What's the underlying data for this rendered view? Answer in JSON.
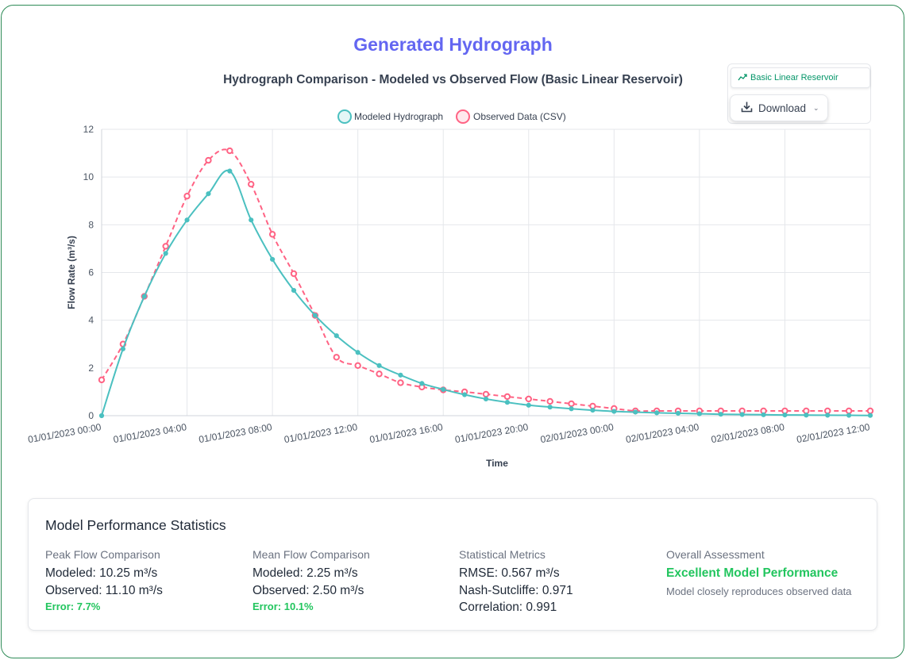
{
  "page": {
    "title": "Generated Hydrograph"
  },
  "toolbar": {
    "model_label": "Basic Linear Reservoir",
    "model_icon": "chart-line-icon",
    "download_label": "Download",
    "download_icon": "download-icon",
    "download_chevron": "chevron-down-icon"
  },
  "chart_data": {
    "type": "line",
    "title": "Hydrograph Comparison - Modeled vs Observed Flow (Basic Linear Reservoir)",
    "xlabel": "Time",
    "ylabel": "Flow Rate (m³/s)",
    "ylim": [
      0,
      12
    ],
    "yticks": [
      0,
      2,
      4,
      6,
      8,
      10,
      12
    ],
    "xticks": [
      "01/01/2023 00:00",
      "01/01/2023 04:00",
      "01/01/2023 08:00",
      "01/01/2023 12:00",
      "01/01/2023 16:00",
      "01/01/2023 20:00",
      "02/01/2023 00:00",
      "02/01/2023 04:00",
      "02/01/2023 08:00",
      "02/01/2023 12:00"
    ],
    "x_hours": [
      0,
      1,
      2,
      3,
      4,
      5,
      6,
      7,
      8,
      9,
      10,
      11,
      12,
      13,
      14,
      15,
      16,
      17,
      18,
      19,
      20,
      21,
      22,
      23,
      24,
      25,
      26,
      27,
      28,
      29,
      30,
      31,
      32,
      33,
      34,
      35,
      36
    ],
    "grid": true,
    "legend_position": "top",
    "series": [
      {
        "name": "Modeled Hydrograph",
        "color": "#4bc0c0",
        "style": "solid",
        "values": [
          0,
          2.8,
          5.0,
          6.8,
          8.2,
          9.3,
          10.25,
          8.2,
          6.55,
          5.25,
          4.2,
          3.35,
          2.65,
          2.1,
          1.7,
          1.35,
          1.1,
          0.88,
          0.7,
          0.56,
          0.44,
          0.36,
          0.29,
          0.23,
          0.18,
          0.15,
          0.12,
          0.1,
          0.08,
          0.06,
          0.05,
          0.04,
          0.03,
          0.025,
          0.02,
          0.015,
          0.01
        ]
      },
      {
        "name": "Observed Data (CSV)",
        "color": "#ff6384",
        "style": "dashed",
        "values": [
          1.5,
          3.0,
          5.0,
          7.1,
          9.2,
          10.7,
          11.1,
          9.7,
          7.6,
          5.95,
          4.2,
          2.45,
          2.1,
          1.75,
          1.38,
          1.2,
          1.08,
          1.0,
          0.9,
          0.8,
          0.7,
          0.6,
          0.5,
          0.4,
          0.3,
          0.2,
          0.2,
          0.2,
          0.2,
          0.2,
          0.2,
          0.2,
          0.2,
          0.2,
          0.2,
          0.2,
          0.2
        ]
      }
    ]
  },
  "stats": {
    "title": "Model Performance Statistics",
    "peak": {
      "label": "Peak Flow Comparison",
      "modeled": "Modeled: 10.25 m³/s",
      "observed": "Observed: 11.10 m³/s",
      "error": "Error: 7.7%"
    },
    "mean": {
      "label": "Mean Flow Comparison",
      "modeled": "Modeled: 2.25 m³/s",
      "observed": "Observed: 2.50 m³/s",
      "error": "Error: 10.1%"
    },
    "metrics": {
      "label": "Statistical Metrics",
      "rmse": "RMSE: 0.567 m³/s",
      "nse": "Nash-Sutcliffe: 0.971",
      "corr": "Correlation: 0.991"
    },
    "overall": {
      "label": "Overall Assessment",
      "verdict": "Excellent Model Performance",
      "desc": "Model closely reproduces observed data"
    }
  },
  "colors": {
    "accent": "#6366f1",
    "frame_border": "#2e8b57",
    "success": "#22c55e"
  }
}
